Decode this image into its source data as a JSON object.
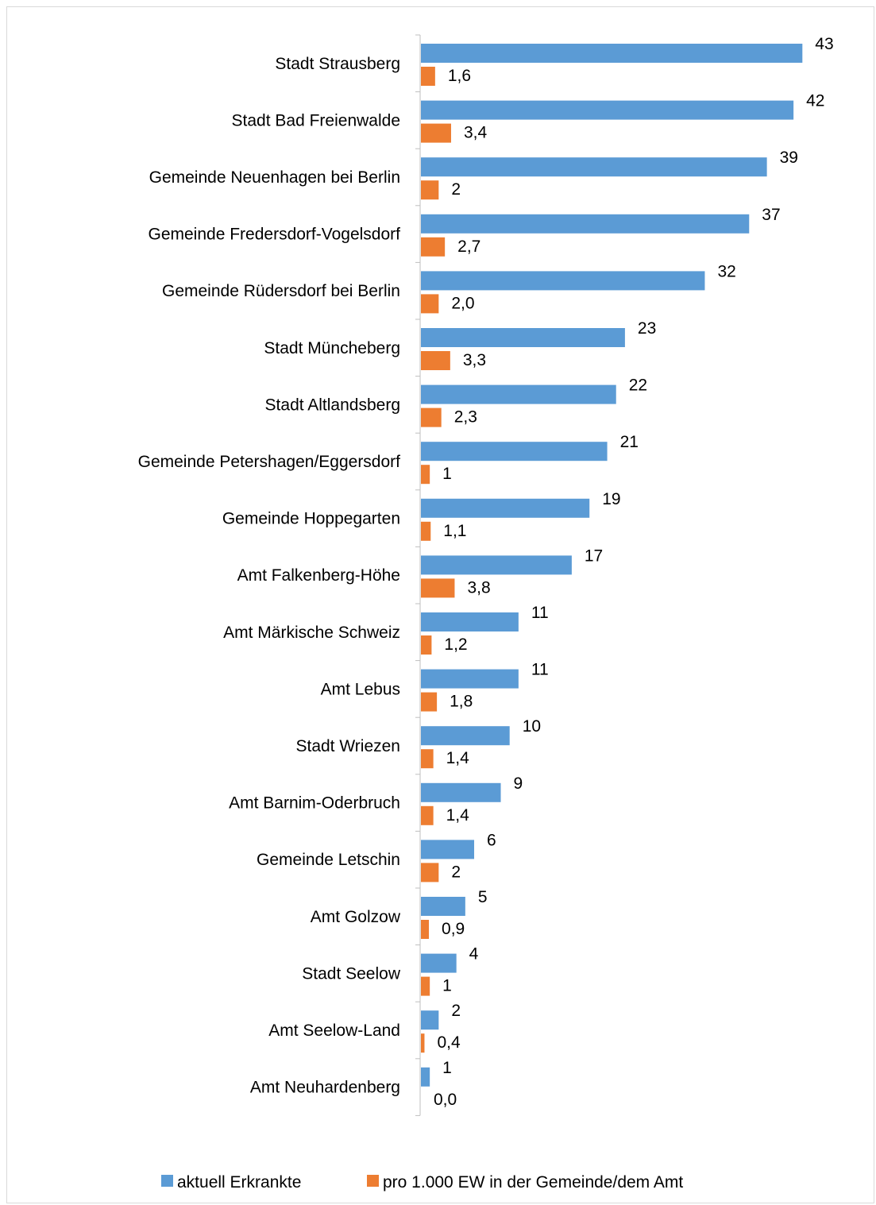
{
  "chart_data": {
    "type": "bar",
    "orientation": "horizontal",
    "title": "",
    "xlabel": "",
    "ylabel": "",
    "grid": false,
    "legend_position": "bottom",
    "categories": [
      "Stadt Strausberg",
      "Stadt Bad Freienwalde",
      "Gemeinde Neuenhagen bei Berlin",
      "Gemeinde Fredersdorf-Vogelsdorf",
      "Gemeinde Rüdersdorf bei Berlin",
      "Stadt Müncheberg",
      "Stadt Altlandsberg",
      "Gemeinde Petershagen/Eggersdorf",
      "Gemeinde Hoppegarten",
      "Amt Falkenberg-Höhe",
      "Amt Märkische Schweiz",
      "Amt Lebus",
      "Stadt Wriezen",
      "Amt Barnim-Oderbruch",
      "Gemeinde Letschin",
      "Amt Golzow",
      "Stadt Seelow",
      "Amt Seelow-Land",
      "Amt Neuhardenberg"
    ],
    "series": [
      {
        "name": "aktuell Erkrankte",
        "color": "#5b9bd5",
        "values": [
          43,
          42,
          39,
          37,
          32,
          23,
          22,
          21,
          19,
          17,
          11,
          11,
          10,
          9,
          6,
          5,
          4,
          2,
          1
        ],
        "labels": [
          "43",
          "42",
          "39",
          "37",
          "32",
          "23",
          "22",
          "21",
          "19",
          "17",
          "11",
          "11",
          "10",
          "9",
          "6",
          "5",
          "4",
          "2",
          "1"
        ]
      },
      {
        "name": "pro 1.000 EW in der Gemeinde/dem Amt",
        "color": "#ed7d31",
        "values": [
          1.6,
          3.4,
          2,
          2.7,
          2.0,
          3.3,
          2.3,
          1,
          1.1,
          3.8,
          1.2,
          1.8,
          1.4,
          1.4,
          2,
          0.9,
          1,
          0.4,
          0.0
        ],
        "labels": [
          "1,6",
          "3,4",
          "2",
          "2,7",
          "2,0",
          "3,3",
          "2,3",
          "1",
          "1,1",
          "3,8",
          "1,2",
          "1,8",
          "1,4",
          "1,4",
          "2",
          "0,9",
          "1",
          "0,4",
          "0,0"
        ]
      }
    ]
  }
}
